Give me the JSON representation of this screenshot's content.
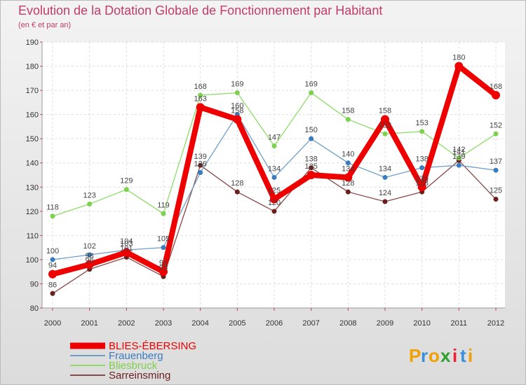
{
  "chart_data": {
    "type": "line",
    "title": "Evolution de la Dotation Globale de Fonctionnement par Habitant",
    "subtitle": "(en € et par an)",
    "categories": [
      "2000",
      "2001",
      "2002",
      "2003",
      "2004",
      "2005",
      "2006",
      "2007",
      "2008",
      "2009",
      "2010",
      "2011",
      "2012"
    ],
    "ylim": [
      80,
      190
    ],
    "yticks": [
      80,
      90,
      100,
      110,
      120,
      130,
      140,
      150,
      160,
      170,
      180,
      190
    ],
    "grid": true,
    "series": [
      {
        "name": "BLIES-ÉBERSING",
        "color": "#ee0000",
        "marker": "#ee0000",
        "width": 8,
        "values": [
          94,
          98,
          103,
          95,
          163,
          158,
          125,
          135,
          134,
          158,
          130,
          180,
          168
        ]
      },
      {
        "name": "Frauenberg",
        "color": "#6e9ec8",
        "marker": "#3a7cc0",
        "width": 1.3,
        "values": [
          100,
          102,
          104,
          105,
          136,
          160,
          134,
          150,
          140,
          134,
          138,
          139,
          137
        ]
      },
      {
        "name": "Bliesbruck",
        "color": "#8fdc6a",
        "marker": "#7ed04f",
        "width": 1.3,
        "values": [
          118,
          123,
          129,
          119,
          168,
          169,
          147,
          169,
          158,
          152,
          153,
          142,
          152
        ]
      },
      {
        "name": "Sarreinsming",
        "color": "#8a4848",
        "marker": "#6b1f1f",
        "width": 1.3,
        "values": [
          86,
          96,
          101,
          93,
          139,
          128,
          120,
          138,
          128,
          124,
          128,
          141,
          125
        ]
      }
    ],
    "legend_position": "bottom-left"
  },
  "logo": {
    "letters": [
      "P",
      "r",
      "o",
      "x",
      "i",
      "t",
      "i"
    ],
    "colors": [
      "#f0a000",
      "#3a8fd8",
      "#f0a000",
      "#2da02d",
      "#e23",
      "#3a8fd8",
      "#f0a000"
    ]
  }
}
